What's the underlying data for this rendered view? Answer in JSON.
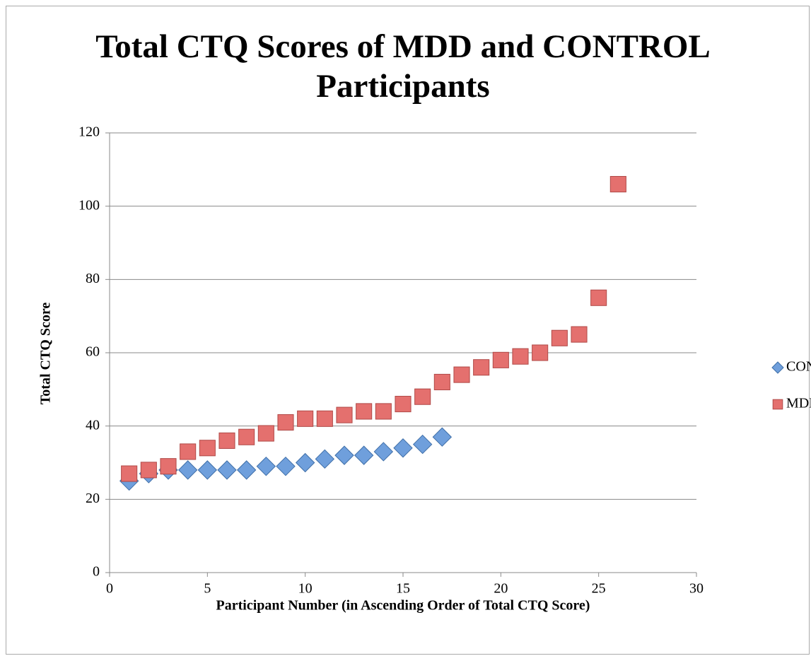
{
  "chart_data": {
    "type": "scatter",
    "title": "Total CTQ Scores of MDD and CONTROL Participants",
    "x_label": "Participant Number (in Ascending Order of Total CTQ Score)",
    "y_label": "Total CTQ Score",
    "xlim": [
      0,
      30
    ],
    "xticks": [
      0,
      5,
      10,
      15,
      20,
      25,
      30
    ],
    "ylim": [
      0,
      120
    ],
    "yticks": [
      0,
      20,
      40,
      60,
      80,
      100,
      120
    ],
    "grid": true,
    "legend": "right",
    "series": [
      {
        "name": "CON",
        "color": "#6f9fdc",
        "marker": "diamond",
        "x": [
          1,
          2,
          3,
          4,
          5,
          6,
          7,
          8,
          9,
          10,
          11,
          12,
          13,
          14,
          15,
          16,
          17
        ],
        "values": [
          25,
          27,
          28,
          28,
          28,
          28,
          28,
          29,
          29,
          30,
          31,
          32,
          32,
          33,
          34,
          35,
          37
        ]
      },
      {
        "name": "MDD",
        "color": "#e4706e",
        "marker": "square",
        "x": [
          1,
          2,
          3,
          4,
          5,
          6,
          7,
          8,
          9,
          10,
          11,
          12,
          13,
          14,
          15,
          16,
          17,
          18,
          19,
          20,
          21,
          22,
          23,
          24,
          25,
          26
        ],
        "values": [
          27,
          28,
          29,
          33,
          34,
          36,
          37,
          38,
          41,
          42,
          42,
          43,
          44,
          44,
          46,
          48,
          52,
          54,
          56,
          58,
          59,
          60,
          64,
          65,
          75,
          106
        ]
      }
    ]
  }
}
